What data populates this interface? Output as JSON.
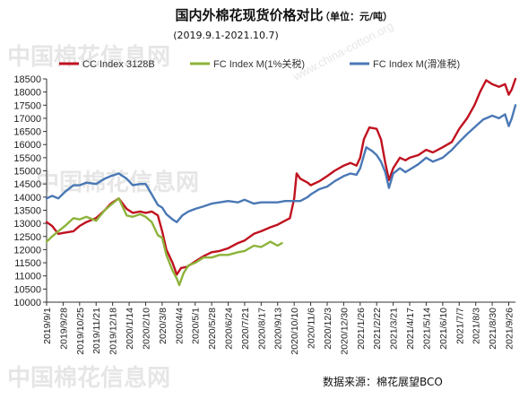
{
  "chart_data": {
    "type": "line",
    "title": "国内外棉花现货价格对比",
    "unit_label": "（单位：元/吨）",
    "subtitle": "(2019.9.1-2021.10.7)",
    "source": "数据来源：棉花展望BCO",
    "watermarks": [
      "中国棉花信息网",
      "www.china-cotton.org",
      "中国棉花信息网",
      "中国棉花信息网"
    ],
    "ylim": [
      10000,
      18500
    ],
    "yticks": [
      10000,
      10500,
      11000,
      11500,
      12000,
      12500,
      13000,
      13500,
      14000,
      14500,
      15000,
      15500,
      16000,
      16500,
      17000,
      17500,
      18000,
      18500
    ],
    "xticks": [
      "2019/9/1",
      "2019/9/28",
      "2019/10/25",
      "2019/11/21",
      "2019/12/18",
      "2020/1/14",
      "2020/2/10",
      "2020/3/8",
      "2020/4/4",
      "2020/5/1",
      "2020/5/28",
      "2020/6/24",
      "2020/7/21",
      "2020/8/17",
      "2020/9/13",
      "2020/10/10",
      "2020/11/6",
      "2020/12/3",
      "2020/12/30",
      "2021/1/26",
      "2021/2/22",
      "2021/3/21",
      "2021/4/17",
      "2021/5/14",
      "2021/6/10",
      "2021/7/7",
      "2021/8/3",
      "2021/8/30",
      "2021/9/26"
    ],
    "x_start": "2019/9/1",
    "x_end": "2021/10/7",
    "series": [
      {
        "name": "CC Index 3128B",
        "color": "#c0111f",
        "points": [
          [
            "2019/9/1",
            13050
          ],
          [
            "2019/9/10",
            12900
          ],
          [
            "2019/9/20",
            12600
          ],
          [
            "2019/10/1",
            12650
          ],
          [
            "2019/10/15",
            12700
          ],
          [
            "2019/10/25",
            12900
          ],
          [
            "2019/11/5",
            13050
          ],
          [
            "2019/11/21",
            13200
          ],
          [
            "2019/12/5",
            13500
          ],
          [
            "2019/12/15",
            13750
          ],
          [
            "2019/12/28",
            13950
          ],
          [
            "2020/1/10",
            13550
          ],
          [
            "2020/1/20",
            13400
          ],
          [
            "2020/2/1",
            13450
          ],
          [
            "2020/2/10",
            13400
          ],
          [
            "2020/2/20",
            13450
          ],
          [
            "2020/3/1",
            13300
          ],
          [
            "2020/3/8",
            12700
          ],
          [
            "2020/3/15",
            12000
          ],
          [
            "2020/3/25",
            11500
          ],
          [
            "2020/4/1",
            11050
          ],
          [
            "2020/4/8",
            11300
          ],
          [
            "2020/4/18",
            11350
          ],
          [
            "2020/5/1",
            11550
          ],
          [
            "2020/5/15",
            11750
          ],
          [
            "2020/5/28",
            11900
          ],
          [
            "2020/6/10",
            11950
          ],
          [
            "2020/6/24",
            12050
          ],
          [
            "2020/7/10",
            12250
          ],
          [
            "2020/7/21",
            12350
          ],
          [
            "2020/8/5",
            12600
          ],
          [
            "2020/8/17",
            12700
          ],
          [
            "2020/9/1",
            12850
          ],
          [
            "2020/9/13",
            12950
          ],
          [
            "2020/9/25",
            13100
          ],
          [
            "2020/10/3",
            13200
          ],
          [
            "2020/10/10",
            13950
          ],
          [
            "2020/10/14",
            14900
          ],
          [
            "2020/10/20",
            14700
          ],
          [
            "2020/11/1",
            14550
          ],
          [
            "2020/11/6",
            14450
          ],
          [
            "2020/11/20",
            14600
          ],
          [
            "2020/12/3",
            14800
          ],
          [
            "2020/12/15",
            15000
          ],
          [
            "2020/12/30",
            15200
          ],
          [
            "2021/1/10",
            15300
          ],
          [
            "2021/1/20",
            15200
          ],
          [
            "2021/1/26",
            15500
          ],
          [
            "2021/2/1",
            16200
          ],
          [
            "2021/2/10",
            16650
          ],
          [
            "2021/2/22",
            16600
          ],
          [
            "2021/3/1",
            16200
          ],
          [
            "2021/3/8",
            15300
          ],
          [
            "2021/3/14",
            14650
          ],
          [
            "2021/3/21",
            15100
          ],
          [
            "2021/4/1",
            15500
          ],
          [
            "2021/4/10",
            15400
          ],
          [
            "2021/4/17",
            15500
          ],
          [
            "2021/5/1",
            15600
          ],
          [
            "2021/5/14",
            15800
          ],
          [
            "2021/5/25",
            15700
          ],
          [
            "2021/6/10",
            15900
          ],
          [
            "2021/6/25",
            16100
          ],
          [
            "2021/7/7",
            16600
          ],
          [
            "2021/7/20",
            17000
          ],
          [
            "2021/8/1",
            17500
          ],
          [
            "2021/8/10",
            18000
          ],
          [
            "2021/8/20",
            18450
          ],
          [
            "2021/8/30",
            18300
          ],
          [
            "2021/9/10",
            18200
          ],
          [
            "2021/9/20",
            18300
          ],
          [
            "2021/9/26",
            17900
          ],
          [
            "2021/10/1",
            18100
          ],
          [
            "2021/10/7",
            18500
          ]
        ]
      },
      {
        "name": "FC Index M(1%关税)",
        "color": "#8db33a",
        "points": [
          [
            "2019/9/1",
            12300
          ],
          [
            "2019/9/10",
            12500
          ],
          [
            "2019/9/20",
            12700
          ],
          [
            "2019/10/1",
            12900
          ],
          [
            "2019/10/15",
            13200
          ],
          [
            "2019/10/25",
            13150
          ],
          [
            "2019/11/5",
            13250
          ],
          [
            "2019/11/21",
            13100
          ],
          [
            "2019/12/5",
            13500
          ],
          [
            "2019/12/15",
            13700
          ],
          [
            "2019/12/28",
            13950
          ],
          [
            "2020/1/10",
            13300
          ],
          [
            "2020/1/20",
            13250
          ],
          [
            "2020/2/1",
            13350
          ],
          [
            "2020/2/10",
            13250
          ],
          [
            "2020/2/20",
            13050
          ],
          [
            "2020/3/1",
            12550
          ],
          [
            "2020/3/8",
            12450
          ],
          [
            "2020/3/15",
            11800
          ],
          [
            "2020/3/25",
            11200
          ],
          [
            "2020/4/1",
            10900
          ],
          [
            "2020/4/5",
            10650
          ],
          [
            "2020/4/12",
            11100
          ],
          [
            "2020/4/20",
            11400
          ],
          [
            "2020/5/1",
            11500
          ],
          [
            "2020/5/15",
            11700
          ],
          [
            "2020/5/28",
            11700
          ],
          [
            "2020/6/10",
            11800
          ],
          [
            "2020/6/24",
            11800
          ],
          [
            "2020/7/10",
            11900
          ],
          [
            "2020/7/21",
            11950
          ],
          [
            "2020/8/5",
            12150
          ],
          [
            "2020/8/17",
            12100
          ],
          [
            "2020/9/1",
            12300
          ],
          [
            "2020/9/13",
            12150
          ],
          [
            "2020/9/20",
            12250
          ]
        ]
      },
      {
        "name": "FC Index M(滑准税)",
        "color": "#4a78b5",
        "points": [
          [
            "2019/9/1",
            13950
          ],
          [
            "2019/9/10",
            14050
          ],
          [
            "2019/9/20",
            13950
          ],
          [
            "2019/10/1",
            14200
          ],
          [
            "2019/10/15",
            14450
          ],
          [
            "2019/10/25",
            14450
          ],
          [
            "2019/11/5",
            14550
          ],
          [
            "2019/11/21",
            14500
          ],
          [
            "2019/12/5",
            14700
          ],
          [
            "2019/12/15",
            14800
          ],
          [
            "2019/12/28",
            14900
          ],
          [
            "2020/1/10",
            14700
          ],
          [
            "2020/1/20",
            14450
          ],
          [
            "2020/2/1",
            14500
          ],
          [
            "2020/2/10",
            14500
          ],
          [
            "2020/2/20",
            14100
          ],
          [
            "2020/3/1",
            13700
          ],
          [
            "2020/3/8",
            13600
          ],
          [
            "2020/3/15",
            13350
          ],
          [
            "2020/3/25",
            13150
          ],
          [
            "2020/4/1",
            13050
          ],
          [
            "2020/4/10",
            13300
          ],
          [
            "2020/4/20",
            13450
          ],
          [
            "2020/5/1",
            13550
          ],
          [
            "2020/5/15",
            13650
          ],
          [
            "2020/5/28",
            13750
          ],
          [
            "2020/6/10",
            13800
          ],
          [
            "2020/6/24",
            13850
          ],
          [
            "2020/7/10",
            13800
          ],
          [
            "2020/7/21",
            13900
          ],
          [
            "2020/8/5",
            13750
          ],
          [
            "2020/8/17",
            13800
          ],
          [
            "2020/9/1",
            13800
          ],
          [
            "2020/9/13",
            13800
          ],
          [
            "2020/9/25",
            13850
          ],
          [
            "2020/10/10",
            13850
          ],
          [
            "2020/10/20",
            13850
          ],
          [
            "2020/11/1",
            14000
          ],
          [
            "2020/11/6",
            14100
          ],
          [
            "2020/11/20",
            14300
          ],
          [
            "2020/12/3",
            14400
          ],
          [
            "2020/12/15",
            14600
          ],
          [
            "2020/12/30",
            14800
          ],
          [
            "2021/1/10",
            14900
          ],
          [
            "2021/1/20",
            14850
          ],
          [
            "2021/1/26",
            15100
          ],
          [
            "2021/2/5",
            15900
          ],
          [
            "2021/2/15",
            15750
          ],
          [
            "2021/2/22",
            15600
          ],
          [
            "2021/3/1",
            15350
          ],
          [
            "2021/3/8",
            14950
          ],
          [
            "2021/3/14",
            14350
          ],
          [
            "2021/3/21",
            14900
          ],
          [
            "2021/4/1",
            15100
          ],
          [
            "2021/4/10",
            14950
          ],
          [
            "2021/4/17",
            15050
          ],
          [
            "2021/5/1",
            15250
          ],
          [
            "2021/5/14",
            15500
          ],
          [
            "2021/5/25",
            15350
          ],
          [
            "2021/6/10",
            15500
          ],
          [
            "2021/6/25",
            15800
          ],
          [
            "2021/7/7",
            16100
          ],
          [
            "2021/7/20",
            16400
          ],
          [
            "2021/8/3",
            16700
          ],
          [
            "2021/8/15",
            16950
          ],
          [
            "2021/8/30",
            17100
          ],
          [
            "2021/9/10",
            17000
          ],
          [
            "2021/9/20",
            17150
          ],
          [
            "2021/9/26",
            16700
          ],
          [
            "2021/10/1",
            17000
          ],
          [
            "2021/10/7",
            17500
          ]
        ]
      }
    ]
  }
}
